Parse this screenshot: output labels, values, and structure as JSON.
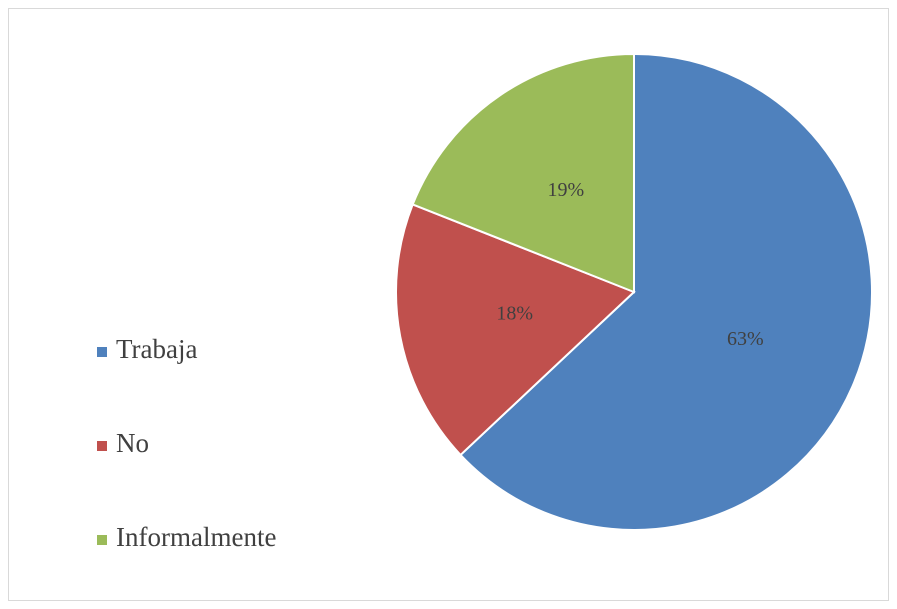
{
  "chart_data": {
    "type": "pie",
    "categories": [
      "Trabaja",
      "No",
      "Informalmente"
    ],
    "values": [
      63,
      18,
      19
    ],
    "value_labels": [
      "63%",
      "18%",
      "19%"
    ],
    "colors": [
      "#4f81bd",
      "#c0504d",
      "#9bbb59"
    ],
    "legend": "left"
  }
}
